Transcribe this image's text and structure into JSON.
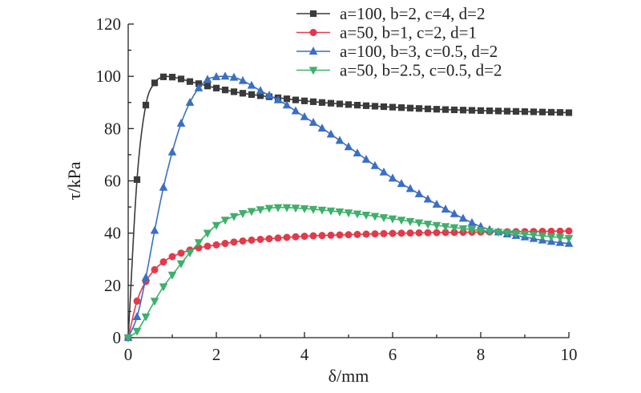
{
  "chart_data": {
    "type": "line",
    "xlabel": "δ/mm",
    "ylabel": "τ/kPa",
    "xlim": [
      0,
      10
    ],
    "ylim": [
      0,
      120
    ],
    "x_ticks": [
      0,
      2,
      4,
      6,
      8,
      10
    ],
    "y_ticks": [
      0,
      20,
      40,
      60,
      80,
      100,
      120
    ],
    "grid": false,
    "legend_position": "top-right",
    "series": [
      {
        "name": "a=100, b=2, c=4, d=2",
        "color": "#3a3a3a",
        "marker": "square",
        "x": [
          0,
          0.2,
          0.4,
          0.6,
          0.8,
          1.0,
          1.2,
          1.4,
          1.6,
          1.8,
          2.0,
          2.5,
          3.0,
          3.5,
          4.0,
          5.0,
          6.0,
          7.0,
          8.0,
          9.0,
          10.0
        ],
        "y": [
          0,
          60.5,
          89.0,
          97.5,
          99.8,
          99.7,
          99.0,
          98.0,
          97.2,
          96.3,
          95.5,
          93.8,
          92.6,
          91.6,
          90.6,
          89.2,
          88.2,
          87.4,
          86.9,
          86.5,
          86.1
        ]
      },
      {
        "name": "a=50, b=1, c=2, d=1",
        "color": "#e23a4a",
        "marker": "circle",
        "x": [
          0,
          0.2,
          0.4,
          0.6,
          0.8,
          1.0,
          1.5,
          2.0,
          2.5,
          3.0,
          4.0,
          5.0,
          6.0,
          7.0,
          8.0,
          9.0,
          10.0
        ],
        "y": [
          0,
          14.0,
          21.5,
          26.0,
          29.0,
          31.0,
          34.0,
          35.5,
          36.8,
          37.6,
          38.8,
          39.4,
          39.9,
          40.2,
          40.4,
          40.6,
          40.8
        ]
      },
      {
        "name": "a=100, b=3, c=0.5, d=2",
        "color": "#3a6fc4",
        "marker": "triangle-up",
        "x": [
          0,
          0.2,
          0.4,
          0.6,
          0.8,
          1.0,
          1.2,
          1.4,
          1.6,
          1.8,
          2.0,
          2.2,
          2.4,
          2.6,
          2.8,
          3.0,
          3.5,
          4.0,
          4.5,
          5.0,
          5.5,
          6.0,
          6.5,
          7.0,
          7.5,
          8.0,
          8.5,
          9.0,
          9.5,
          10.0
        ],
        "y": [
          0,
          8.0,
          23.0,
          41.0,
          57.5,
          71.0,
          82.0,
          90.0,
          95.5,
          98.8,
          99.8,
          100.0,
          99.6,
          98.3,
          96.5,
          94.5,
          90.0,
          84.5,
          79.0,
          73.0,
          67.0,
          61.0,
          56.0,
          51.0,
          46.5,
          42.5,
          40.0,
          38.5,
          37.0,
          36.0
        ]
      },
      {
        "name": "a=50, b=2.5, c=0.5, d=2",
        "color": "#3db06a",
        "marker": "triangle-down",
        "x": [
          0,
          0.2,
          0.4,
          0.6,
          0.8,
          1.0,
          1.5,
          2.0,
          2.5,
          3.0,
          3.4,
          4.0,
          5.0,
          6.0,
          7.0,
          8.0,
          9.0,
          10.0
        ],
        "y": [
          0,
          2.5,
          8.0,
          14.0,
          19.5,
          24.0,
          34.5,
          43.0,
          47.0,
          49.0,
          49.8,
          49.4,
          47.8,
          45.5,
          43.0,
          41.0,
          39.6,
          38.0
        ]
      }
    ]
  }
}
